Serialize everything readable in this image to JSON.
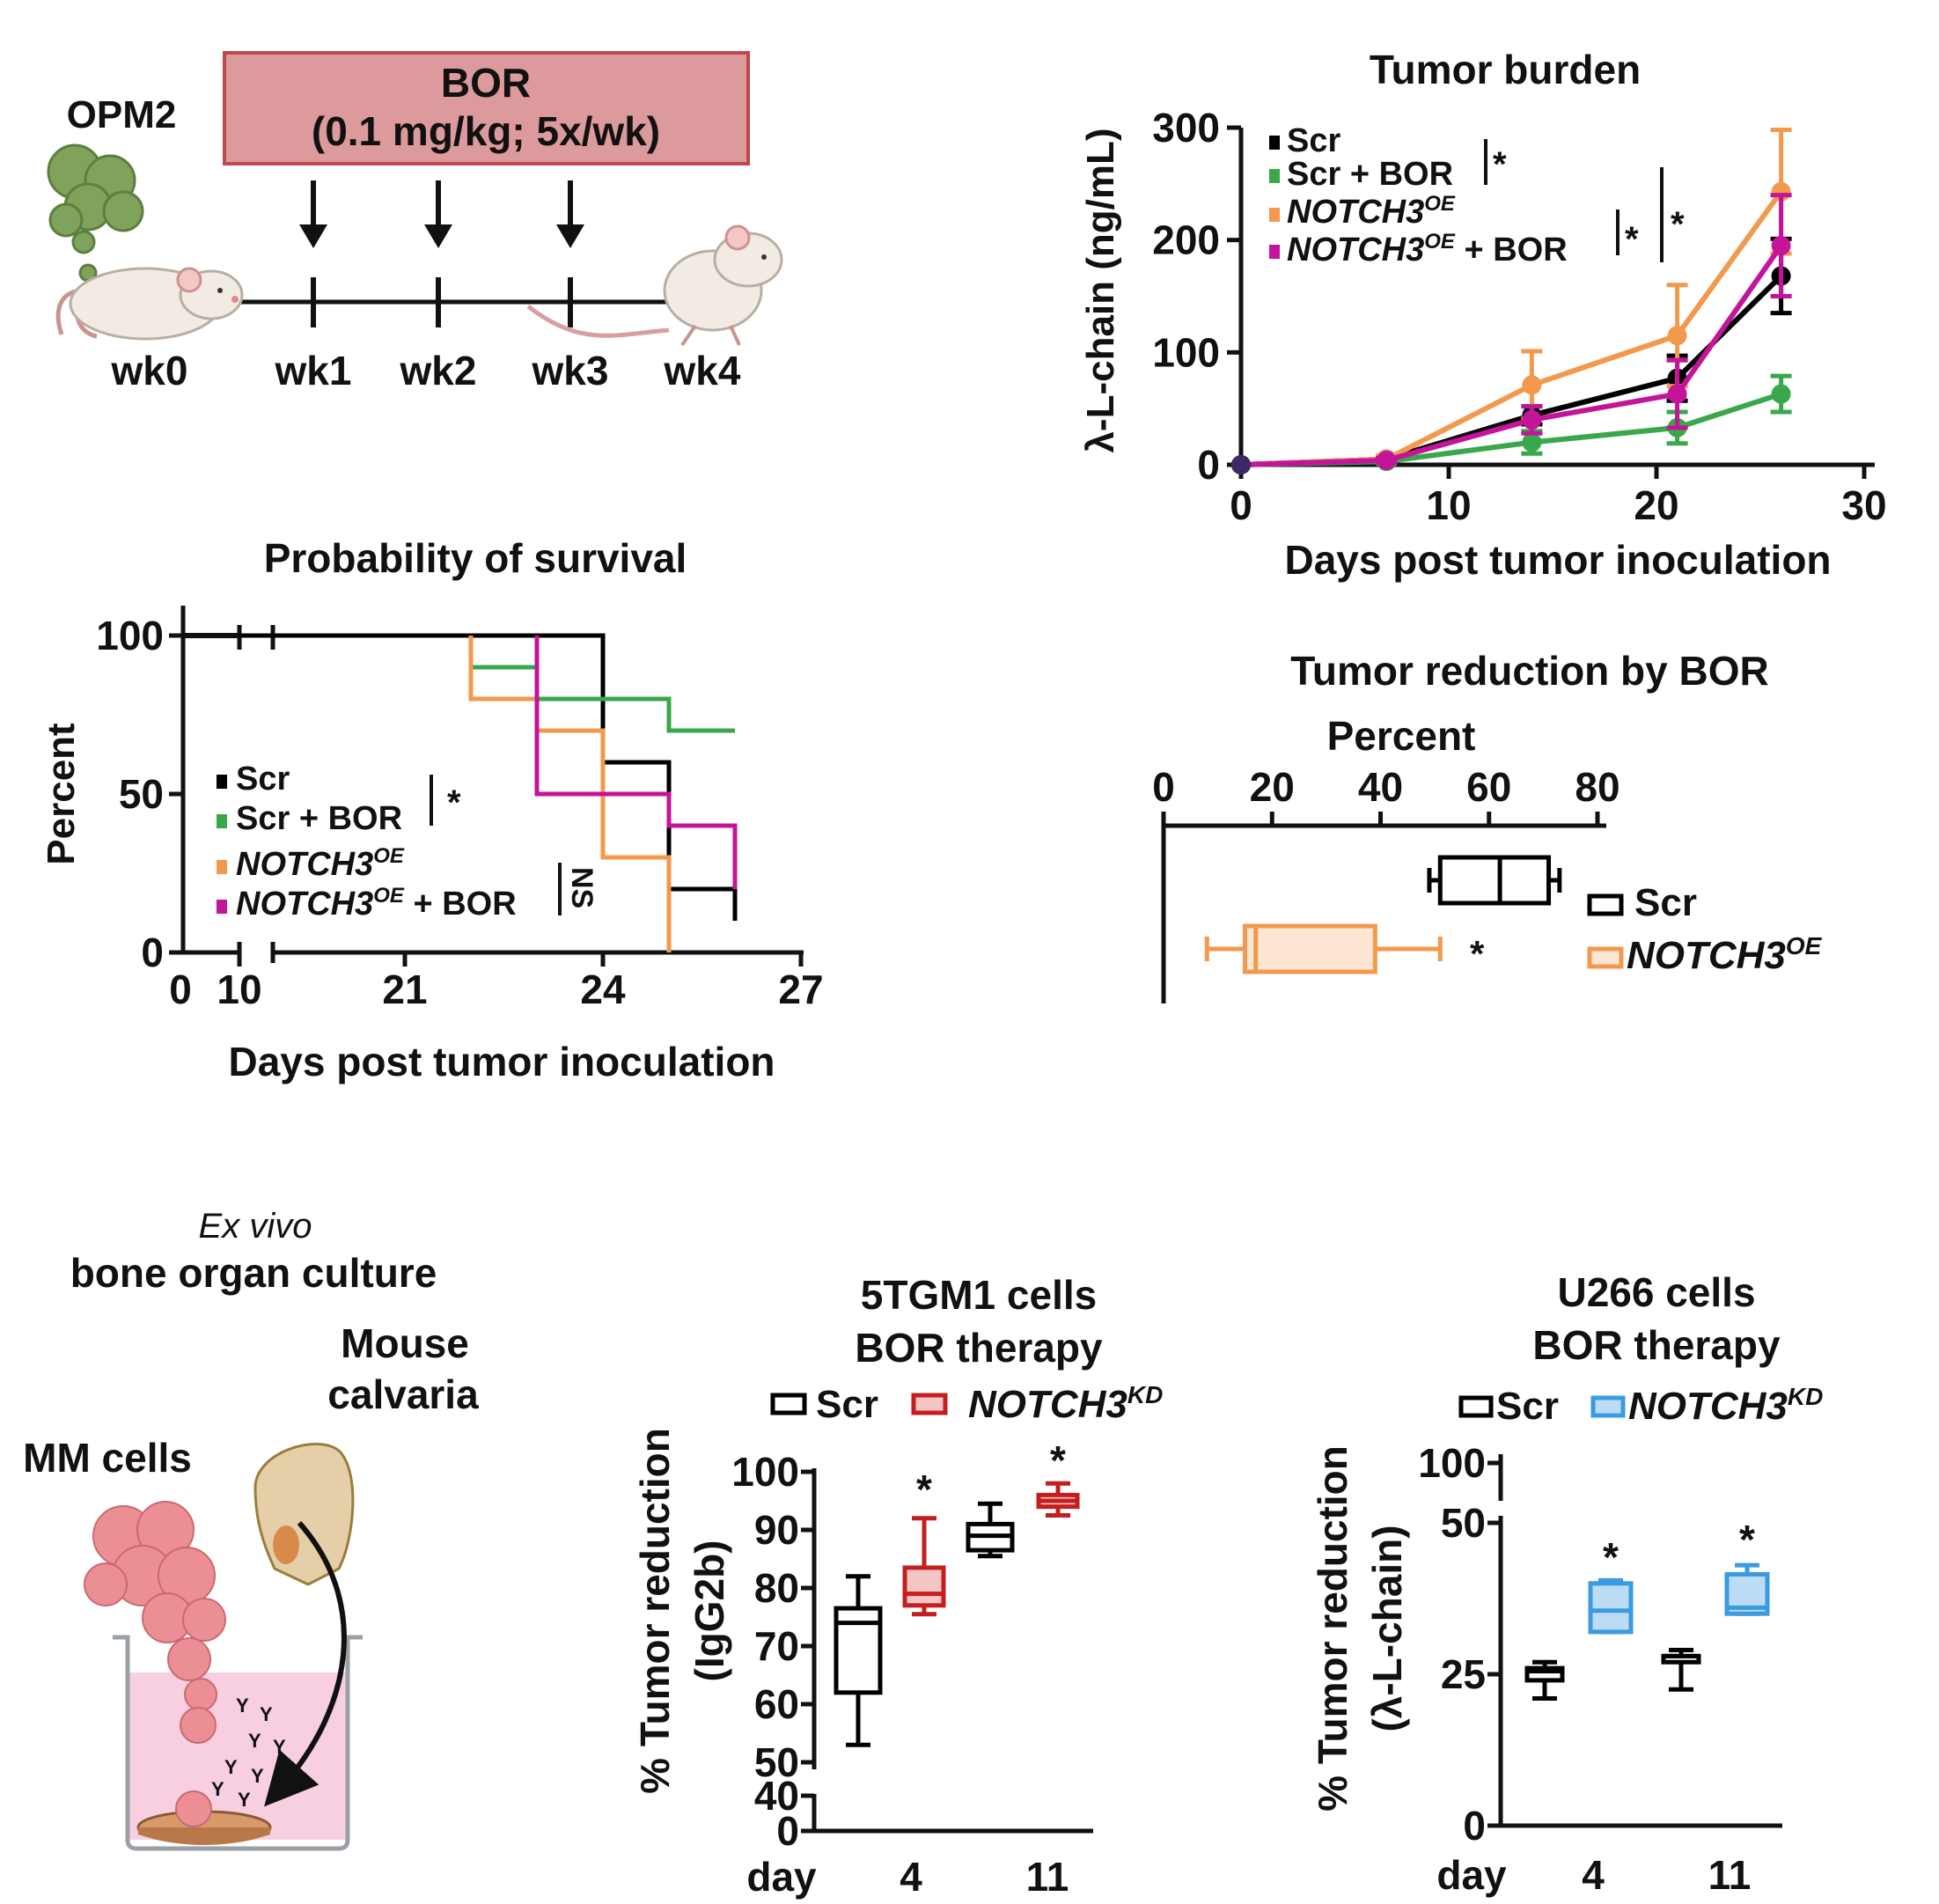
{
  "schematic": {
    "cell_line": "OPM2",
    "treatment_line1": "BOR",
    "treatment_line2": "(0.1 mg/kg; 5x/wk)",
    "colors": {
      "box_fill": "#dc9a9d",
      "box_stroke": "#c0484d",
      "cells": "#7fa35a",
      "mouse": "#f1ebe4"
    },
    "weeks": [
      "wk0",
      "wk1",
      "wk2",
      "wk3",
      "wk4"
    ]
  },
  "exvivo": {
    "title_italic": "Ex vivo",
    "title": "bone organ culture",
    "calvaria_line1": "Mouse",
    "calvaria_line2": "calvaria",
    "cells_label": "MM cells",
    "colors": {
      "medium": "#f7cfe0",
      "cells": "#ec8f94",
      "bone": "#e4cfa9",
      "disc": "#d89a6a",
      "antibody": "#6a4fa2"
    }
  },
  "chart_data": [
    {
      "id": "tumor_burden",
      "type": "line",
      "title": "Tumor burden",
      "xlabel": "Days post tumor inoculation",
      "ylabel": "λ-L-chain (ng/mL)",
      "xlim": [
        0,
        30
      ],
      "ylim": [
        0,
        300
      ],
      "xticks": [
        "0",
        "10",
        "20",
        "30"
      ],
      "yticks": [
        "0",
        "100",
        "200",
        "300"
      ],
      "x": [
        0,
        7,
        14,
        21,
        26
      ],
      "series": [
        {
          "name": "Scr",
          "color": "#000000",
          "values": [
            0,
            5,
            44,
            77,
            168
          ],
          "err": [
            0,
            2,
            8,
            20,
            33
          ]
        },
        {
          "name": "Scr + BOR",
          "color": "#3aa84a",
          "values": [
            0,
            3,
            20,
            33,
            63
          ],
          "err": [
            0,
            2,
            10,
            14,
            16
          ]
        },
        {
          "name": "NOTCH3",
          "sup": "OE",
          "color": "#f3994e",
          "values": [
            0,
            5,
            71,
            115,
            243
          ],
          "err": [
            0,
            3,
            30,
            45,
            55
          ]
        },
        {
          "name": "NOTCH3",
          "sup": "OE",
          "suffix": " + BOR",
          "color": "#c4149a",
          "values": [
            0,
            4,
            40,
            63,
            195
          ],
          "err": [
            0,
            2,
            12,
            30,
            45
          ]
        }
      ],
      "legend_location": "top-left",
      "significance": [
        "*",
        "*",
        "*"
      ]
    },
    {
      "id": "survival",
      "type": "line",
      "title": "Probability of survival",
      "xlabel": "Days post tumor inoculation",
      "ylabel": "Percent",
      "xticks": [
        "0",
        "10",
        "21",
        "24",
        "27"
      ],
      "yticks": [
        "0",
        "50",
        "100"
      ],
      "ylim": [
        0,
        100
      ],
      "axis_break": [
        0,
        10
      ],
      "series": [
        {
          "name": "Scr",
          "color": "#000000",
          "steps": [
            [
              10,
              100
            ],
            [
              24,
              100
            ],
            [
              24,
              60
            ],
            [
              25,
              60
            ],
            [
              25,
              20
            ],
            [
              26,
              20
            ],
            [
              26,
              10
            ]
          ]
        },
        {
          "name": "Scr + BOR",
          "color": "#3aa84a",
          "steps": [
            [
              22,
              100
            ],
            [
              22,
              90
            ],
            [
              23,
              90
            ],
            [
              23,
              80
            ],
            [
              25,
              80
            ],
            [
              25,
              70
            ],
            [
              26,
              70
            ]
          ]
        },
        {
          "name": "NOTCH3",
          "sup": "OE",
          "color": "#f3994e",
          "steps": [
            [
              22,
              100
            ],
            [
              22,
              80
            ],
            [
              23,
              80
            ],
            [
              23,
              70
            ],
            [
              24,
              70
            ],
            [
              24,
              30
            ],
            [
              25,
              30
            ],
            [
              25,
              0
            ]
          ]
        },
        {
          "name": "NOTCH3",
          "sup": "OE",
          "suffix": " + BOR",
          "color": "#c4149a",
          "steps": [
            [
              23,
              100
            ],
            [
              23,
              50
            ],
            [
              25,
              50
            ],
            [
              25,
              40
            ],
            [
              26,
              40
            ],
            [
              26,
              20
            ]
          ]
        }
      ],
      "significance": [
        "*",
        "NS"
      ]
    },
    {
      "id": "tumor_reduction_bor",
      "type": "box",
      "title": "Tumor reduction by BOR",
      "axis_label": "Percent",
      "xlim": [
        0,
        80
      ],
      "xticks": [
        "0",
        "20",
        "40",
        "60",
        "80"
      ],
      "boxes": [
        {
          "name": "Scr",
          "color": "#000000",
          "fill": "#ffffff",
          "min": 49,
          "q1": 51,
          "median": 62,
          "q3": 71,
          "max": 73
        },
        {
          "name": "NOTCH3",
          "sup": "OE",
          "color": "#f3994e",
          "fill": "#fde6d3",
          "min": 8,
          "q1": 15,
          "median": 17,
          "q3": 39,
          "max": 51
        }
      ],
      "significance": "*"
    },
    {
      "id": "5tgm1",
      "type": "box",
      "title_line1": "5TGM1 cells",
      "title_line2": "BOR therapy",
      "ylabel_line1": "% Tumor reduction",
      "ylabel_line2": "(IgG2b)",
      "xlabel_prefix": "day",
      "categories": [
        "4",
        "11"
      ],
      "yticks_lower": [
        "0",
        "40"
      ],
      "yticks_upper": [
        "50",
        "60",
        "70",
        "80",
        "90",
        "100"
      ],
      "legend": [
        {
          "name": "Scr",
          "color": "#000000"
        },
        {
          "name": "NOTCH3",
          "sup": "KD",
          "color": "#c41e1e"
        }
      ],
      "boxes": [
        {
          "group": "4",
          "name": "Scr",
          "color": "#000000",
          "fill": "#ffffff",
          "min": 53,
          "q1": 62,
          "median": 74,
          "q3": 76.5,
          "max": 82
        },
        {
          "group": "4",
          "name": "NOTCH3KD",
          "color": "#c41e1e",
          "fill": "#f3c5c5",
          "min": 75.5,
          "q1": 77,
          "median": 79,
          "q3": 83.5,
          "max": 92
        },
        {
          "group": "11",
          "name": "Scr",
          "color": "#000000",
          "fill": "#ffffff",
          "min": 85.5,
          "q1": 86.5,
          "median": 89,
          "q3": 91,
          "max": 94.5
        },
        {
          "group": "11",
          "name": "NOTCH3KD",
          "color": "#c41e1e",
          "fill": "#f3c5c5",
          "min": 92.5,
          "q1": 94,
          "median": 95,
          "q3": 96,
          "max": 98
        }
      ],
      "significance": [
        "*",
        "*"
      ]
    },
    {
      "id": "u266",
      "type": "box",
      "title_line1": "U266 cells",
      "title_line2": "BOR therapy",
      "ylabel_line1": "% Tumor reduction",
      "ylabel_line2": "(λ-L-chain)",
      "xlabel_prefix": "day",
      "categories": [
        "4",
        "11"
      ],
      "yticks": [
        "0",
        "25",
        "50",
        "100"
      ],
      "legend": [
        {
          "name": "Scr",
          "color": "#000000"
        },
        {
          "name": "NOTCH3",
          "sup": "KD",
          "color": "#3b9be0"
        }
      ],
      "boxes": [
        {
          "group": "4",
          "name": "Scr",
          "color": "#000000",
          "fill": "#ffffff",
          "min": 21,
          "q1": 24,
          "median": 25.5,
          "q3": 26,
          "max": 27
        },
        {
          "group": "4",
          "name": "NOTCH3KD",
          "color": "#3b9be0",
          "fill": "#bcdcf3",
          "min": 32,
          "q1": 32,
          "median": 35.5,
          "q3": 40,
          "max": 40.5
        },
        {
          "group": "11",
          "name": "Scr",
          "color": "#000000",
          "fill": "#ffffff",
          "min": 22.5,
          "q1": 27,
          "median": 28,
          "q3": 28,
          "max": 29
        },
        {
          "group": "11",
          "name": "NOTCH3KD",
          "color": "#3b9be0",
          "fill": "#bcdcf3",
          "min": 35,
          "q1": 35,
          "median": 36,
          "q3": 41.5,
          "max": 43
        }
      ],
      "significance": [
        "*",
        "*"
      ]
    }
  ]
}
